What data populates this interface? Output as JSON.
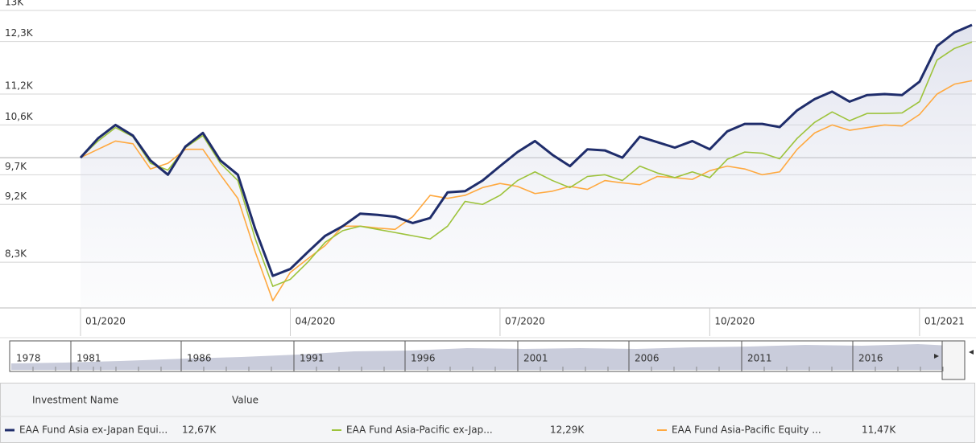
{
  "chart_data": {
    "type": "line",
    "log_scale": true,
    "grid": true,
    "baseline": 10000,
    "ylim": [
      7650,
      13150
    ],
    "yticks": [
      {
        "value": 13000,
        "label": "13K"
      },
      {
        "value": 12300,
        "label": "12,3K"
      },
      {
        "value": 11200,
        "label": "11,2K"
      },
      {
        "value": 10600,
        "label": "10,6K"
      },
      {
        "value": 9700,
        "label": "9,7K"
      },
      {
        "value": 9200,
        "label": "9,2K"
      },
      {
        "value": 8300,
        "label": "8,3K"
      }
    ],
    "categories": [
      "01/2020",
      null,
      null,
      null,
      null,
      null,
      null,
      null,
      null,
      null,
      null,
      null,
      "04/2020",
      null,
      null,
      null,
      null,
      null,
      null,
      null,
      null,
      null,
      null,
      null,
      "07/2020",
      null,
      null,
      null,
      null,
      null,
      null,
      null,
      null,
      null,
      null,
      null,
      "10/2020",
      null,
      null,
      null,
      null,
      null,
      null,
      null,
      null,
      null,
      null,
      null,
      "01/2021",
      null,
      null,
      null
    ],
    "series": [
      {
        "name": "EAA Fund Asia ex-Japan Equi...",
        "color": "#1f2d6b",
        "legend_value": "12,67K",
        "values": [
          10000,
          10350,
          10600,
          10400,
          9950,
          9700,
          10200,
          10450,
          9950,
          9700,
          8800,
          8100,
          8200,
          8450,
          8700,
          8850,
          9050,
          9030,
          9000,
          8900,
          8980,
          9400,
          9420,
          9600,
          9850,
          10100,
          10300,
          10050,
          9850,
          10150,
          10130,
          10000,
          10380,
          10280,
          10180,
          10300,
          10150,
          10480,
          10620,
          10620,
          10560,
          10880,
          11100,
          11250,
          11050,
          11180,
          11200,
          11180,
          11450,
          12200,
          12500,
          12670
        ]
      },
      {
        "name": "EAA Fund Asia-Pacific ex-Jap...",
        "color": "#9dc33b",
        "legend_value": "12,29K",
        "values": [
          10000,
          10300,
          10550,
          10380,
          9900,
          9780,
          10180,
          10400,
          9900,
          9600,
          8650,
          7950,
          8050,
          8300,
          8600,
          8780,
          8850,
          8800,
          8750,
          8700,
          8650,
          8850,
          9250,
          9200,
          9350,
          9600,
          9750,
          9600,
          9480,
          9670,
          9700,
          9600,
          9850,
          9730,
          9650,
          9750,
          9650,
          9970,
          10100,
          10080,
          9980,
          10350,
          10650,
          10850,
          10680,
          10820,
          10820,
          10830,
          11050,
          11900,
          12150,
          12290
        ]
      },
      {
        "name": "EAA Fund Asia-Pacific Equity ...",
        "color": "#ffa940",
        "legend_value": "11,47K",
        "values": [
          10000,
          10150,
          10300,
          10250,
          9800,
          9900,
          10150,
          10150,
          9700,
          9300,
          8450,
          7750,
          8150,
          8350,
          8550,
          8850,
          8850,
          8820,
          8800,
          9000,
          9350,
          9300,
          9350,
          9480,
          9550,
          9500,
          9380,
          9420,
          9500,
          9450,
          9600,
          9560,
          9530,
          9670,
          9650,
          9620,
          9770,
          9850,
          9800,
          9700,
          9750,
          10150,
          10450,
          10600,
          10500,
          10550,
          10600,
          10580,
          10800,
          11200,
          11400,
          11470
        ]
      }
    ],
    "navigator": {
      "labels": [
        "1978",
        "1981",
        "1986",
        "1991",
        "1996",
        "2001",
        "2006",
        "2011",
        "2016"
      ]
    },
    "legend": {
      "headers": [
        "Investment Name",
        "Value"
      ]
    }
  }
}
